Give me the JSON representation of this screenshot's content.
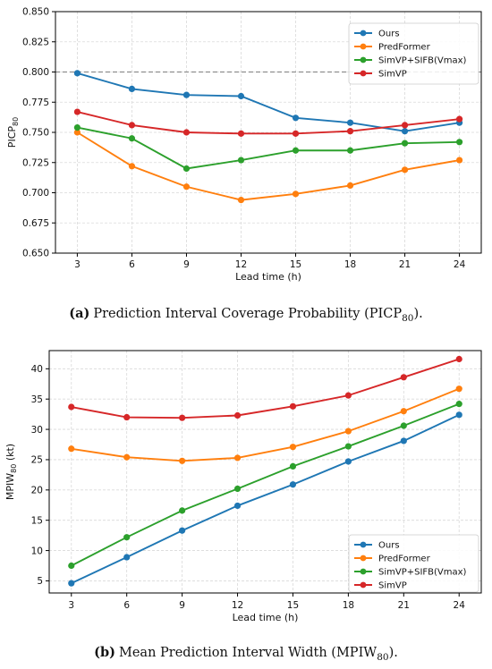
{
  "chart_data": [
    {
      "type": "line",
      "id": "a",
      "x": [
        3,
        6,
        9,
        12,
        15,
        18,
        21,
        24
      ],
      "xlabel": "Lead time (h)",
      "ylabel": "PICP",
      "ylabel_sub": "80",
      "ylim": [
        0.65,
        0.85
      ],
      "yticks": [
        "0.650",
        "0.675",
        "0.700",
        "0.725",
        "0.750",
        "0.775",
        "0.800",
        "0.825",
        "0.850"
      ],
      "xticks": [
        "3",
        "6",
        "9",
        "12",
        "15",
        "18",
        "21",
        "24"
      ],
      "grid": true,
      "legend_position": "top-right",
      "reference_line": 0.8,
      "series": [
        {
          "name": "Ours",
          "color": "#1f77b4",
          "values": [
            0.799,
            0.786,
            0.781,
            0.78,
            0.762,
            0.758,
            0.751,
            0.758
          ]
        },
        {
          "name": "PredFormer",
          "color": "#ff7f0e",
          "values": [
            0.75,
            0.722,
            0.705,
            0.694,
            0.699,
            0.706,
            0.719,
            0.727
          ]
        },
        {
          "name": "SimVP+SIFB(Vmax)",
          "color": "#2ca02c",
          "values": [
            0.754,
            0.745,
            0.72,
            0.727,
            0.735,
            0.735,
            0.741,
            0.742
          ]
        },
        {
          "name": "SimVP",
          "color": "#d62728",
          "values": [
            0.767,
            0.756,
            0.75,
            0.749,
            0.749,
            0.751,
            0.756,
            0.761
          ]
        }
      ],
      "caption": {
        "label": "(a)",
        "text_before": "Prediction Interval Coverage Probability (PICP",
        "sub": "80",
        "text_after": ")."
      }
    },
    {
      "type": "line",
      "id": "b",
      "x": [
        3,
        6,
        9,
        12,
        15,
        18,
        21,
        24
      ],
      "xlabel": "Lead time (h)",
      "ylabel": "MPIW",
      "ylabel_sub": "80",
      "ylabel_unit": " (kt)",
      "ylim": [
        3,
        43
      ],
      "yticks": [
        "5",
        "10",
        "15",
        "20",
        "25",
        "30",
        "35",
        "40"
      ],
      "xticks": [
        "3",
        "6",
        "9",
        "12",
        "15",
        "18",
        "21",
        "24"
      ],
      "grid": true,
      "legend_position": "bottom-right",
      "series": [
        {
          "name": "Ours",
          "color": "#1f77b4",
          "values": [
            4.6,
            8.9,
            13.3,
            17.4,
            20.9,
            24.7,
            28.1,
            32.4
          ]
        },
        {
          "name": "PredFormer",
          "color": "#ff7f0e",
          "values": [
            26.8,
            25.4,
            24.8,
            25.3,
            27.1,
            29.7,
            33.0,
            36.7
          ]
        },
        {
          "name": "SimVP+SIFB(Vmax)",
          "color": "#2ca02c",
          "values": [
            7.5,
            12.2,
            16.6,
            20.2,
            23.9,
            27.2,
            30.6,
            34.2
          ]
        },
        {
          "name": "SimVP",
          "color": "#d62728",
          "values": [
            33.7,
            32.0,
            31.9,
            32.3,
            33.8,
            35.6,
            38.6,
            41.6
          ]
        }
      ],
      "caption": {
        "label": "(b)",
        "text_before": "Mean Prediction Interval Width (MPIW",
        "sub": "80",
        "text_after": ")."
      }
    }
  ]
}
